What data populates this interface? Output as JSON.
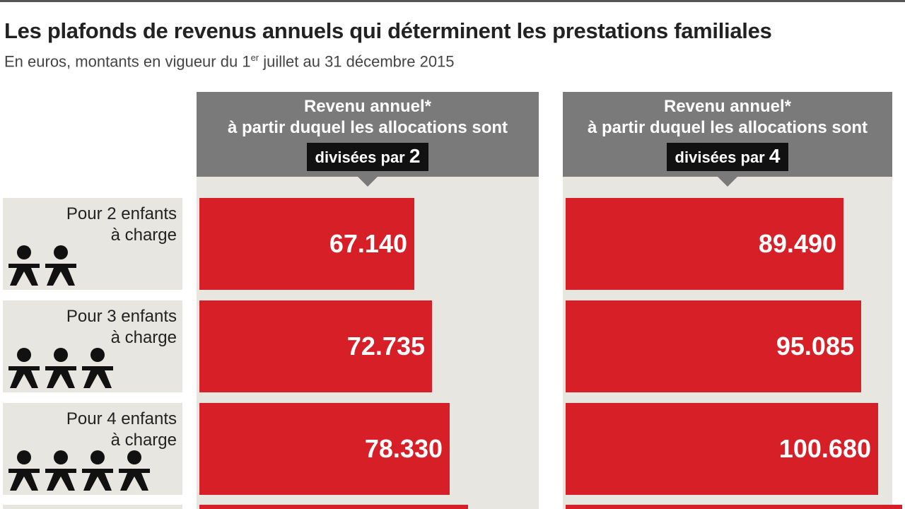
{
  "header": {
    "title": "Les plafonds de revenus annuels qui déterminent les prestations familiales",
    "subtitle_pre": "En euros, montants en vigueur du 1",
    "subtitle_sup": "er",
    "subtitle_post": " juillet au 31 décembre 2015"
  },
  "colors": {
    "bar": "#d61f26",
    "panel": "#e8e6e1",
    "header": "#7a7a7a",
    "badge": "#111111"
  },
  "icons": {
    "child": "child-figure-icon"
  },
  "chart_data": {
    "type": "bar",
    "orientation": "horizontal",
    "columns": [
      {
        "header_line1": "Revenu annuel*",
        "header_line2": "à partir duquel les allocations sont",
        "badge_text": "divisées par ",
        "badge_num": "2"
      },
      {
        "header_line1": "Revenu annuel*",
        "header_line2": "à partir duquel les allocations sont",
        "badge_text": "divisées par ",
        "badge_num": "4"
      }
    ],
    "categories": [
      {
        "line1": "Pour 2 enfants",
        "line2": "à charge",
        "children": 2
      },
      {
        "line1": "Pour 3 enfants",
        "line2": "à charge",
        "children": 3
      },
      {
        "line1": "Pour 4 enfants",
        "line2": "à charge",
        "children": 4
      }
    ],
    "series": [
      {
        "values": [
          67140,
          72735,
          78330
        ],
        "labels": [
          "67.140",
          "72.735",
          "78.330"
        ]
      },
      {
        "values": [
          89490,
          95085,
          100680
        ],
        "labels": [
          "89.490",
          "95.085",
          "100.680"
        ]
      }
    ]
  }
}
